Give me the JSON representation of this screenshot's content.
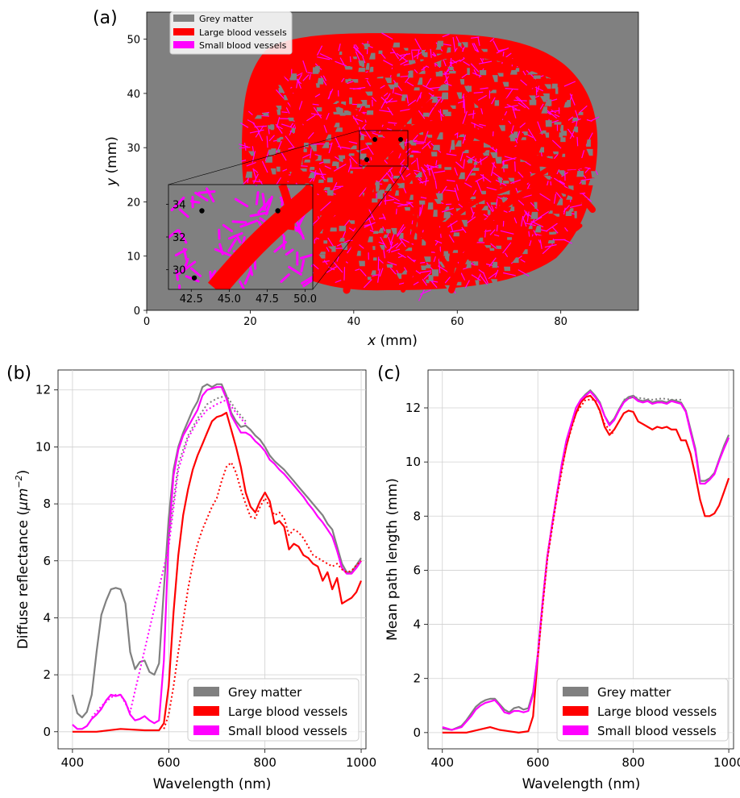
{
  "chart_data": [
    {
      "panel_label": "(a)",
      "type": "map",
      "xlabel": "x (mm)",
      "ylabel": "y (mm)",
      "xlim": [
        0,
        95
      ],
      "ylim": [
        0,
        55
      ],
      "xticks": [
        "0",
        "20",
        "40",
        "60",
        "80"
      ],
      "yticks": [
        "0",
        "10",
        "20",
        "30",
        "40",
        "50"
      ],
      "legend": [
        "Grey matter",
        "Large blood vessels",
        "Small blood vessels"
      ],
      "legend_colors": [
        "#808080",
        "#ff0000",
        "#ff00ff"
      ],
      "inset": {
        "xlim": [
          41,
          50.5
        ],
        "ylim": [
          28.8,
          35.2
        ],
        "xticks": [
          "42.5",
          "45.0",
          "47.5",
          "50.0"
        ],
        "yticks": [
          "30",
          "32",
          "34"
        ],
        "points": [
          [
            43.2,
            33.6
          ],
          [
            48.2,
            33.6
          ],
          [
            42.7,
            29.5
          ]
        ]
      },
      "zoom_box": [
        41,
        49.5,
        28.5,
        35
      ]
    },
    {
      "panel_label": "(b)",
      "type": "line",
      "xlabel": "Wavelength (nm)",
      "ylabel": "Diffuse reflectance (μm⁻²)",
      "xlim": [
        370,
        1010
      ],
      "ylim": [
        -0.6,
        12.7
      ],
      "xticks": [
        "400",
        "600",
        "800",
        "1000"
      ],
      "yticks": [
        "0",
        "2",
        "4",
        "6",
        "8",
        "10",
        "12"
      ],
      "legend_position": "lower-right",
      "series": [
        {
          "name": "Grey matter",
          "color": "#808080",
          "style": "solid",
          "x": [
            400,
            410,
            420,
            430,
            440,
            450,
            460,
            470,
            480,
            490,
            500,
            510,
            520,
            530,
            540,
            550,
            560,
            570,
            580,
            590,
            600,
            610,
            620,
            630,
            640,
            650,
            660,
            670,
            680,
            690,
            700,
            710,
            720,
            730,
            740,
            750,
            760,
            770,
            780,
            790,
            800,
            810,
            820,
            830,
            840,
            850,
            860,
            870,
            880,
            890,
            900,
            910,
            920,
            930,
            940,
            950,
            960,
            970,
            980,
            990,
            1000
          ],
          "y": [
            1.3,
            0.65,
            0.5,
            0.7,
            1.3,
            2.8,
            4.1,
            4.6,
            5.0,
            5.05,
            5.0,
            4.5,
            2.8,
            2.2,
            2.45,
            2.5,
            2.1,
            2.0,
            2.4,
            5.0,
            7.5,
            9.2,
            10.0,
            10.5,
            10.9,
            11.3,
            11.6,
            12.1,
            12.2,
            12.1,
            12.2,
            12.2,
            11.8,
            11.2,
            10.9,
            10.7,
            10.75,
            10.6,
            10.4,
            10.25,
            10.0,
            9.7,
            9.5,
            9.35,
            9.2,
            9.0,
            8.8,
            8.6,
            8.4,
            8.2,
            8.0,
            7.8,
            7.6,
            7.3,
            7.1,
            6.5,
            5.9,
            5.6,
            5.6,
            5.85,
            6.1
          ]
        },
        {
          "name": "Large blood vessels",
          "color": "#ff0000",
          "style": "solid",
          "x": [
            400,
            450,
            500,
            550,
            580,
            590,
            600,
            610,
            620,
            630,
            640,
            650,
            660,
            670,
            680,
            690,
            700,
            710,
            720,
            730,
            740,
            750,
            760,
            770,
            780,
            790,
            800,
            810,
            820,
            830,
            840,
            850,
            860,
            870,
            880,
            890,
            900,
            910,
            920,
            930,
            940,
            950,
            960,
            970,
            980,
            990,
            1000
          ],
          "y": [
            0.0,
            0.0,
            0.1,
            0.05,
            0.05,
            0.3,
            1.6,
            4.2,
            6.2,
            7.6,
            8.5,
            9.2,
            9.7,
            10.1,
            10.5,
            10.9,
            11.05,
            11.1,
            11.2,
            10.6,
            10.0,
            9.3,
            8.4,
            7.9,
            7.7,
            8.1,
            8.4,
            8.1,
            7.3,
            7.4,
            7.2,
            6.4,
            6.6,
            6.5,
            6.2,
            6.1,
            5.9,
            5.8,
            5.3,
            5.6,
            5.0,
            5.4,
            4.5,
            4.6,
            4.7,
            4.9,
            5.3
          ]
        },
        {
          "name": "Small blood vessels",
          "color": "#ff00ff",
          "style": "solid",
          "x": [
            400,
            410,
            420,
            430,
            440,
            450,
            460,
            470,
            480,
            490,
            500,
            510,
            520,
            530,
            540,
            550,
            560,
            570,
            580,
            590,
            600,
            610,
            620,
            630,
            640,
            650,
            660,
            670,
            680,
            690,
            700,
            710,
            720,
            730,
            740,
            750,
            760,
            770,
            780,
            790,
            800,
            810,
            820,
            830,
            840,
            850,
            860,
            870,
            880,
            890,
            900,
            910,
            920,
            930,
            940,
            950,
            960,
            970,
            980,
            990,
            1000
          ],
          "y": [
            0.25,
            0.1,
            0.1,
            0.2,
            0.45,
            0.6,
            0.8,
            1.1,
            1.3,
            1.25,
            1.3,
            1.05,
            0.6,
            0.4,
            0.45,
            0.55,
            0.4,
            0.3,
            0.4,
            2.5,
            6.8,
            9.0,
            9.9,
            10.4,
            10.7,
            11.0,
            11.3,
            11.8,
            12.0,
            12.05,
            12.1,
            12.1,
            11.7,
            11.1,
            10.8,
            10.5,
            10.5,
            10.4,
            10.2,
            10.05,
            9.85,
            9.55,
            9.4,
            9.2,
            9.05,
            8.85,
            8.65,
            8.45,
            8.25,
            8.0,
            7.8,
            7.55,
            7.35,
            7.1,
            6.85,
            6.35,
            5.75,
            5.55,
            5.55,
            5.75,
            6.0
          ]
        },
        {
          "name": "",
          "color": "#808080",
          "style": "dotted",
          "x": [
            600,
            620,
            640,
            660,
            680,
            700,
            720,
            740,
            760
          ],
          "y": [
            6.8,
            9.4,
            10.4,
            11.0,
            11.5,
            11.7,
            11.8,
            11.3,
            10.9
          ]
        },
        {
          "name": "",
          "color": "#ff00ff",
          "style": "dotted",
          "x": [
            440,
            460,
            480,
            490,
            500,
            520,
            600,
            620,
            640,
            660,
            680,
            700,
            720,
            740,
            760
          ],
          "y": [
            0.5,
            0.9,
            1.2,
            1.3,
            1.3,
            0.7,
            6.5,
            9.2,
            10.3,
            10.9,
            11.3,
            11.5,
            11.65,
            11.2,
            10.8
          ]
        },
        {
          "name": "",
          "color": "#ff0000",
          "style": "dotted",
          "x": [
            590,
            600,
            610,
            620,
            630,
            640,
            650,
            660,
            670,
            680,
            690,
            700,
            710,
            720,
            730,
            740,
            750,
            760,
            770,
            780,
            790,
            800,
            810,
            820,
            830,
            840,
            850,
            860,
            870,
            880,
            890,
            900,
            910,
            920,
            930,
            940,
            950,
            960,
            970,
            980,
            990,
            1000
          ],
          "y": [
            0.1,
            0.6,
            1.6,
            2.8,
            3.9,
            5.0,
            5.9,
            6.6,
            7.1,
            7.5,
            7.9,
            8.2,
            8.8,
            9.3,
            9.45,
            9.1,
            8.5,
            8.0,
            7.55,
            7.5,
            7.9,
            8.2,
            7.9,
            7.6,
            7.7,
            7.5,
            6.9,
            7.1,
            7.0,
            6.8,
            6.5,
            6.2,
            6.1,
            6.0,
            5.9,
            5.8,
            5.9,
            5.7,
            5.6,
            5.65,
            5.85,
            6.0
          ]
        }
      ],
      "legend": [
        "Grey matter",
        "Large blood vessels",
        "Small blood vessels"
      ]
    },
    {
      "panel_label": "(c)",
      "type": "line",
      "xlabel": "Wavelength (nm)",
      "ylabel": "Mean path length (mm)",
      "xlim": [
        370,
        1010
      ],
      "ylim": [
        -0.6,
        13.4
      ],
      "xticks": [
        "400",
        "600",
        "800",
        "1000"
      ],
      "yticks": [
        "0",
        "2",
        "4",
        "6",
        "8",
        "10",
        "12"
      ],
      "legend_position": "lower-right",
      "series": [
        {
          "name": "Grey matter",
          "color": "#808080",
          "style": "solid",
          "x": [
            400,
            420,
            440,
            450,
            460,
            470,
            480,
            490,
            500,
            510,
            520,
            530,
            540,
            550,
            560,
            570,
            580,
            590,
            600,
            610,
            620,
            630,
            640,
            650,
            660,
            670,
            680,
            690,
            700,
            710,
            720,
            730,
            740,
            750,
            760,
            770,
            780,
            790,
            800,
            810,
            820,
            830,
            840,
            850,
            860,
            870,
            880,
            890,
            900,
            910,
            920,
            930,
            940,
            950,
            960,
            970,
            980,
            990,
            1000
          ],
          "y": [
            0.15,
            0.1,
            0.25,
            0.45,
            0.7,
            0.95,
            1.1,
            1.2,
            1.25,
            1.25,
            1.05,
            0.85,
            0.75,
            0.9,
            0.95,
            0.85,
            0.9,
            1.5,
            2.9,
            4.8,
            6.5,
            7.7,
            8.8,
            9.9,
            10.8,
            11.4,
            12.0,
            12.3,
            12.5,
            12.65,
            12.45,
            12.2,
            11.7,
            11.4,
            11.6,
            11.95,
            12.25,
            12.4,
            12.45,
            12.3,
            12.25,
            12.3,
            12.2,
            12.25,
            12.25,
            12.2,
            12.3,
            12.25,
            12.2,
            11.9,
            11.2,
            10.5,
            9.3,
            9.3,
            9.4,
            9.6,
            10.1,
            10.6,
            11.0
          ]
        },
        {
          "name": "Large blood vessels",
          "color": "#ff0000",
          "style": "solid",
          "x": [
            400,
            450,
            500,
            520,
            560,
            580,
            590,
            600,
            610,
            620,
            630,
            640,
            650,
            660,
            670,
            680,
            690,
            700,
            710,
            720,
            730,
            740,
            750,
            760,
            770,
            780,
            790,
            800,
            810,
            820,
            830,
            840,
            850,
            860,
            870,
            880,
            890,
            900,
            910,
            920,
            930,
            940,
            950,
            960,
            970,
            980,
            990,
            1000
          ],
          "y": [
            0.0,
            0.0,
            0.2,
            0.1,
            0.0,
            0.05,
            0.6,
            2.8,
            4.8,
            6.5,
            7.7,
            8.8,
            9.8,
            10.6,
            11.3,
            11.8,
            12.2,
            12.4,
            12.45,
            12.25,
            11.9,
            11.3,
            11.0,
            11.2,
            11.5,
            11.8,
            11.9,
            11.85,
            11.5,
            11.4,
            11.3,
            11.2,
            11.3,
            11.25,
            11.3,
            11.2,
            11.2,
            10.8,
            10.8,
            10.3,
            9.5,
            8.6,
            8.0,
            8.0,
            8.1,
            8.4,
            8.9,
            9.4
          ]
        },
        {
          "name": "Small blood vessels",
          "color": "#ff00ff",
          "style": "solid",
          "x": [
            400,
            420,
            440,
            450,
            460,
            470,
            480,
            490,
            500,
            510,
            520,
            530,
            540,
            550,
            560,
            570,
            580,
            590,
            600,
            610,
            620,
            630,
            640,
            650,
            660,
            670,
            680,
            690,
            700,
            710,
            720,
            730,
            740,
            750,
            760,
            770,
            780,
            790,
            800,
            810,
            820,
            830,
            840,
            850,
            860,
            870,
            880,
            890,
            900,
            910,
            920,
            930,
            940,
            950,
            960,
            970,
            980,
            990,
            1000
          ],
          "y": [
            0.2,
            0.1,
            0.2,
            0.4,
            0.6,
            0.85,
            1.0,
            1.1,
            1.15,
            1.2,
            1.0,
            0.75,
            0.7,
            0.8,
            0.8,
            0.75,
            0.8,
            1.4,
            2.9,
            4.8,
            6.5,
            7.7,
            8.8,
            9.9,
            10.8,
            11.4,
            12.0,
            12.3,
            12.45,
            12.6,
            12.4,
            12.15,
            11.7,
            11.35,
            11.55,
            11.9,
            12.2,
            12.35,
            12.4,
            12.25,
            12.2,
            12.25,
            12.15,
            12.2,
            12.2,
            12.15,
            12.25,
            12.2,
            12.15,
            11.85,
            11.1,
            10.4,
            9.2,
            9.2,
            9.35,
            9.55,
            10.05,
            10.5,
            10.9
          ]
        },
        {
          "name": "",
          "color": "#ff0000",
          "style": "dotted",
          "x": [
            600,
            620,
            640,
            660,
            680,
            700,
            720,
            740,
            760
          ],
          "y": [
            2.8,
            6.4,
            8.7,
            10.6,
            11.8,
            12.3,
            12.3,
            11.4,
            11.0
          ]
        },
        {
          "name": "",
          "color": "#808080",
          "style": "dotted",
          "x": [
            780,
            800,
            820,
            840,
            860,
            880,
            900
          ],
          "y": [
            12.3,
            12.4,
            12.35,
            12.3,
            12.35,
            12.3,
            12.3
          ]
        }
      ],
      "legend": [
        "Grey matter",
        "Large blood vessels",
        "Small blood vessels"
      ]
    }
  ]
}
